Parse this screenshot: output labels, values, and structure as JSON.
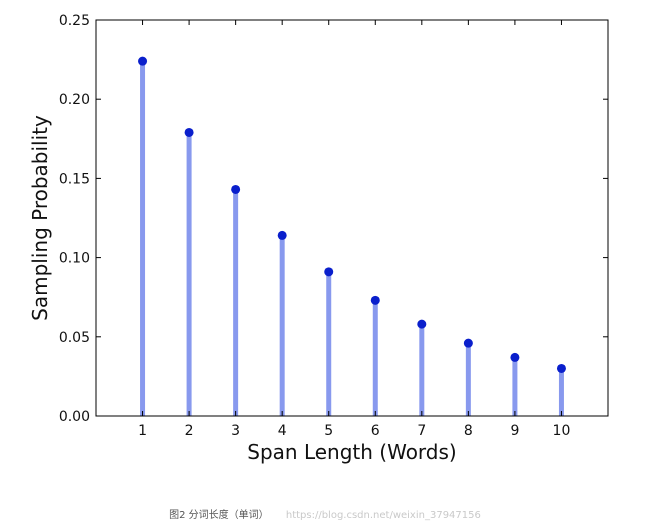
{
  "chart_data": {
    "type": "stem",
    "x": [
      1,
      2,
      3,
      4,
      5,
      6,
      7,
      8,
      9,
      10
    ],
    "values": [
      0.224,
      0.179,
      0.143,
      0.114,
      0.091,
      0.073,
      0.058,
      0.046,
      0.037,
      0.03
    ],
    "xlabel": "Span Length (Words)",
    "ylabel": "Sampling Probability",
    "xlim": [
      0,
      11
    ],
    "ylim": [
      0,
      0.25
    ],
    "yticks": [
      "0.00",
      "0.05",
      "0.10",
      "0.15",
      "0.20",
      "0.25"
    ],
    "xticks": [
      "1",
      "2",
      "3",
      "4",
      "5",
      "6",
      "7",
      "8",
      "9",
      "10"
    ],
    "grid": false,
    "colors": {
      "stem": "#8899ee",
      "marker": "#0a1fcc",
      "axis": "#000000"
    }
  },
  "caption": {
    "text": "图2 分词长度（单词）",
    "watermark": "https://blog.csdn.net/weixin_37947156"
  }
}
